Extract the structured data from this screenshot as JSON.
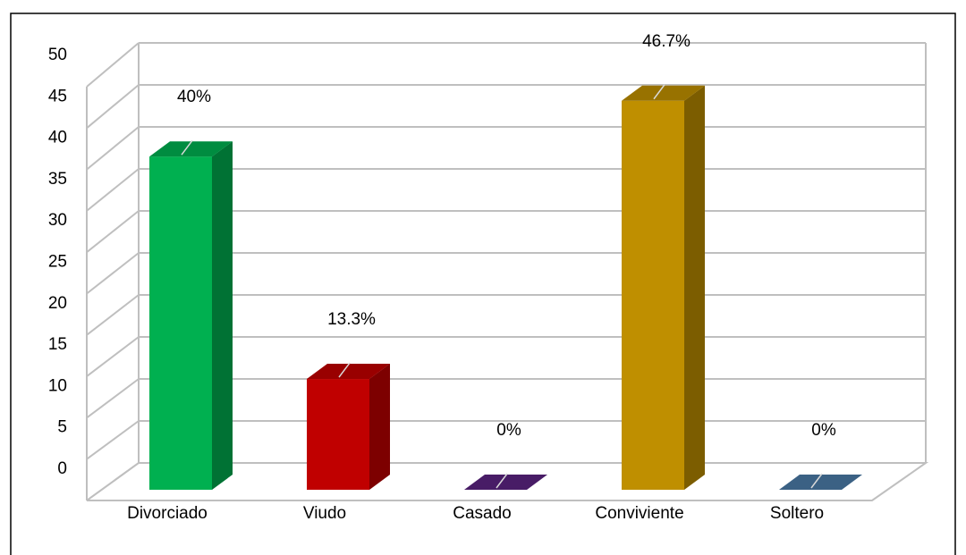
{
  "chart_data": {
    "type": "bar3d",
    "categories": [
      "Divorciado",
      "Viudo",
      "Casado",
      "Conviviente",
      "Soltero"
    ],
    "values": [
      40,
      13.3,
      0,
      46.7,
      0
    ],
    "value_labels": [
      "40%",
      "13.3%",
      "0%",
      "46.7%",
      "0%"
    ],
    "colors": [
      "#00b050",
      "#c00000",
      "#5b2380",
      "#bf8f00",
      "#4a7aa6"
    ],
    "ylim": [
      0,
      50
    ],
    "yticks": [
      0,
      5,
      10,
      15,
      20,
      25,
      30,
      35,
      40,
      45,
      50
    ],
    "grid": true
  }
}
